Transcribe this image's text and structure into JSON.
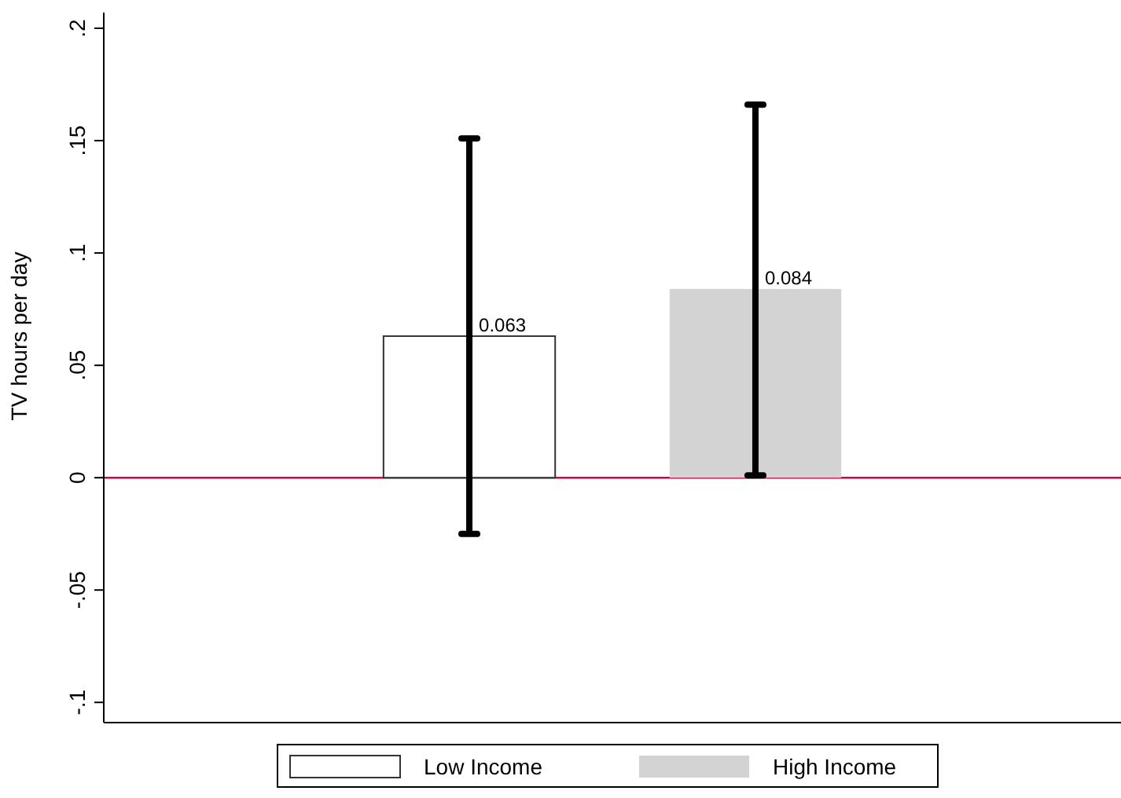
{
  "chart_data": {
    "type": "bar",
    "ylabel": "TV hours per day",
    "categories": [
      null
    ],
    "series": [
      {
        "name": "Low Income",
        "color": "#ffffff",
        "values": [
          0.063
        ],
        "errors": [
          [
            -0.025,
            0.151
          ]
        ]
      },
      {
        "name": "High Income",
        "color": "#d3d3d3",
        "values": [
          0.084
        ],
        "errors": [
          [
            0.001,
            0.166
          ]
        ]
      }
    ],
    "ylim": [
      -0.109,
      0.207
    ],
    "yticks": [
      {
        "value": -0.1,
        "label": "-.1"
      },
      {
        "value": -0.05,
        "label": "-.05"
      },
      {
        "value": 0,
        "label": "0"
      },
      {
        "value": 0.05,
        "label": ".05"
      },
      {
        "value": 0.1,
        "label": ".1"
      },
      {
        "value": 0.15,
        "label": ".15"
      },
      {
        "value": 0.2,
        "label": ".2"
      }
    ],
    "ref_lines": [
      {
        "axis": "y",
        "value": 0,
        "color": "#d6004b"
      }
    ],
    "data_labels": true,
    "legend": "bottom",
    "tick_labels": "y",
    "grid": false
  }
}
